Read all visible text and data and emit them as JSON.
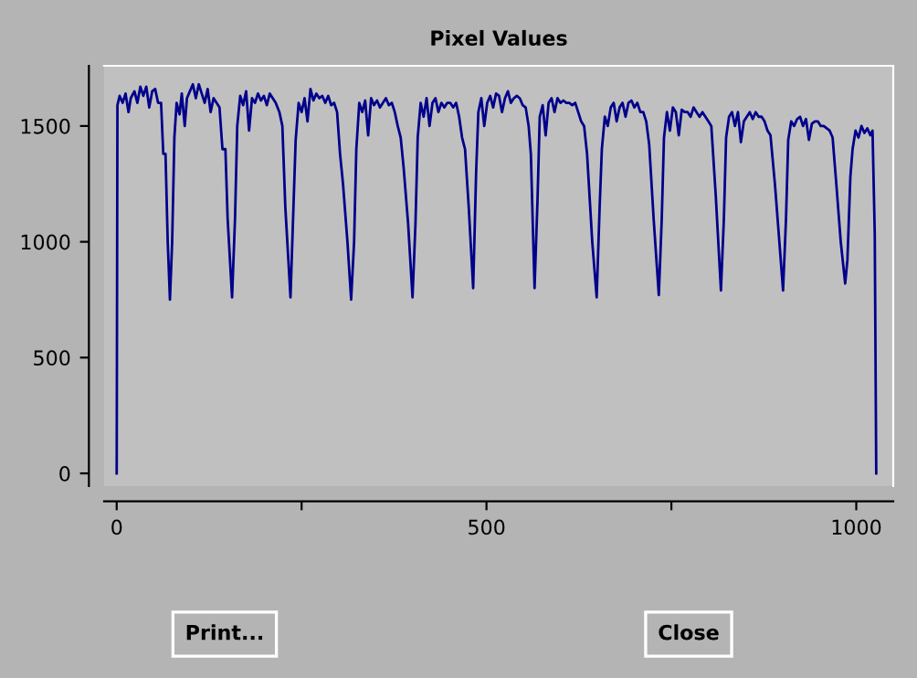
{
  "chart_data": {
    "type": "line",
    "title": "Pixel Values",
    "x": [
      0,
      1,
      4,
      8,
      12,
      16,
      19,
      24,
      28,
      32,
      36,
      40,
      44,
      48,
      52,
      56,
      60,
      63,
      66,
      69,
      72,
      75,
      78,
      81,
      85,
      88,
      92,
      95,
      99,
      103,
      107,
      111,
      115,
      119,
      123,
      127,
      131,
      135,
      139,
      143,
      147,
      150,
      156,
      160,
      163,
      167,
      171,
      175,
      179,
      183,
      187,
      191,
      195,
      199,
      203,
      207,
      211,
      215,
      220,
      224,
      228,
      235,
      239,
      242,
      246,
      250,
      254,
      258,
      262,
      266,
      270,
      274,
      278,
      282,
      286,
      290,
      294,
      298,
      302,
      306,
      312,
      317,
      321,
      324,
      328,
      332,
      336,
      340,
      344,
      348,
      352,
      356,
      360,
      364,
      368,
      372,
      376,
      380,
      384,
      388,
      394,
      400,
      404,
      407,
      411,
      415,
      419,
      423,
      427,
      431,
      435,
      439,
      443,
      447,
      451,
      455,
      459,
      463,
      467,
      471,
      476,
      482,
      486,
      489,
      493,
      497,
      501,
      505,
      509,
      513,
      517,
      521,
      525,
      529,
      533,
      537,
      541,
      545,
      549,
      553,
      557,
      560,
      565,
      569,
      572,
      576,
      580,
      584,
      588,
      592,
      596,
      600,
      604,
      608,
      612,
      616,
      620,
      624,
      628,
      632,
      636,
      643,
      649,
      653,
      656,
      660,
      664,
      668,
      672,
      676,
      680,
      684,
      688,
      692,
      696,
      700,
      704,
      708,
      712,
      716,
      720,
      726,
      733,
      737,
      740,
      744,
      748,
      752,
      756,
      760,
      764,
      768,
      772,
      776,
      780,
      784,
      788,
      792,
      796,
      800,
      804,
      810,
      817,
      821,
      824,
      828,
      832,
      836,
      840,
      844,
      848,
      852,
      856,
      860,
      864,
      868,
      872,
      876,
      880,
      884,
      890,
      896,
      901,
      905,
      908,
      912,
      916,
      920,
      924,
      928,
      932,
      936,
      940,
      944,
      948,
      952,
      956,
      960,
      964,
      968,
      973,
      979,
      985,
      988,
      992,
      995,
      999,
      1003,
      1007,
      1011,
      1015,
      1019,
      1022,
      1025,
      1027
    ],
    "series": [
      {
        "color": "#00008b",
        "values": [
          0,
          1590,
          1630,
          1600,
          1640,
          1560,
          1620,
          1650,
          1600,
          1670,
          1630,
          1670,
          1580,
          1650,
          1660,
          1600,
          1600,
          1380,
          1380,
          1000,
          750,
          1000,
          1450,
          1600,
          1550,
          1640,
          1500,
          1620,
          1650,
          1680,
          1620,
          1680,
          1640,
          1600,
          1660,
          1560,
          1620,
          1600,
          1580,
          1400,
          1400,
          1100,
          760,
          1100,
          1500,
          1630,
          1590,
          1650,
          1480,
          1620,
          1600,
          1640,
          1610,
          1630,
          1590,
          1640,
          1620,
          1600,
          1560,
          1500,
          1150,
          760,
          1150,
          1440,
          1600,
          1560,
          1620,
          1520,
          1660,
          1610,
          1640,
          1620,
          1630,
          1600,
          1630,
          1590,
          1600,
          1560,
          1380,
          1250,
          1000,
          750,
          1000,
          1400,
          1600,
          1560,
          1610,
          1460,
          1620,
          1590,
          1610,
          1580,
          1600,
          1620,
          1590,
          1600,
          1560,
          1500,
          1450,
          1320,
          1080,
          760,
          1080,
          1450,
          1600,
          1540,
          1620,
          1500,
          1600,
          1620,
          1560,
          1600,
          1580,
          1600,
          1600,
          1580,
          1600,
          1540,
          1450,
          1400,
          1150,
          800,
          1300,
          1560,
          1620,
          1500,
          1600,
          1630,
          1580,
          1640,
          1630,
          1560,
          1620,
          1650,
          1600,
          1620,
          1630,
          1620,
          1590,
          1580,
          1500,
          1380,
          800,
          1180,
          1540,
          1590,
          1460,
          1600,
          1620,
          1560,
          1620,
          1600,
          1610,
          1600,
          1600,
          1590,
          1600,
          1560,
          1520,
          1500,
          1380,
          1000,
          760,
          1150,
          1400,
          1540,
          1500,
          1580,
          1600,
          1520,
          1580,
          1600,
          1540,
          1600,
          1610,
          1580,
          1600,
          1560,
          1560,
          1520,
          1420,
          1100,
          770,
          1100,
          1450,
          1560,
          1480,
          1580,
          1560,
          1460,
          1570,
          1560,
          1560,
          1540,
          1580,
          1560,
          1540,
          1560,
          1540,
          1520,
          1500,
          1200,
          790,
          1100,
          1450,
          1540,
          1560,
          1500,
          1560,
          1430,
          1520,
          1540,
          1560,
          1530,
          1560,
          1540,
          1540,
          1520,
          1480,
          1460,
          1250,
          1000,
          790,
          1100,
          1440,
          1520,
          1500,
          1530,
          1540,
          1500,
          1530,
          1440,
          1510,
          1520,
          1520,
          1500,
          1500,
          1490,
          1480,
          1450,
          1250,
          1000,
          820,
          920,
          1280,
          1400,
          1480,
          1450,
          1500,
          1470,
          1490,
          1460,
          1480,
          1030,
          0
        ]
      }
    ],
    "xlim": [
      -17,
      1050
    ],
    "xticks": [
      0,
      {
        "value": 250,
        "label": null
      },
      500,
      {
        "value": 750,
        "label": null
      },
      1000
    ],
    "ylim": [
      -55,
      1760
    ],
    "yticks": [
      0,
      500,
      1000,
      1500
    ],
    "annotations": [
      "Print...",
      "Close"
    ]
  }
}
